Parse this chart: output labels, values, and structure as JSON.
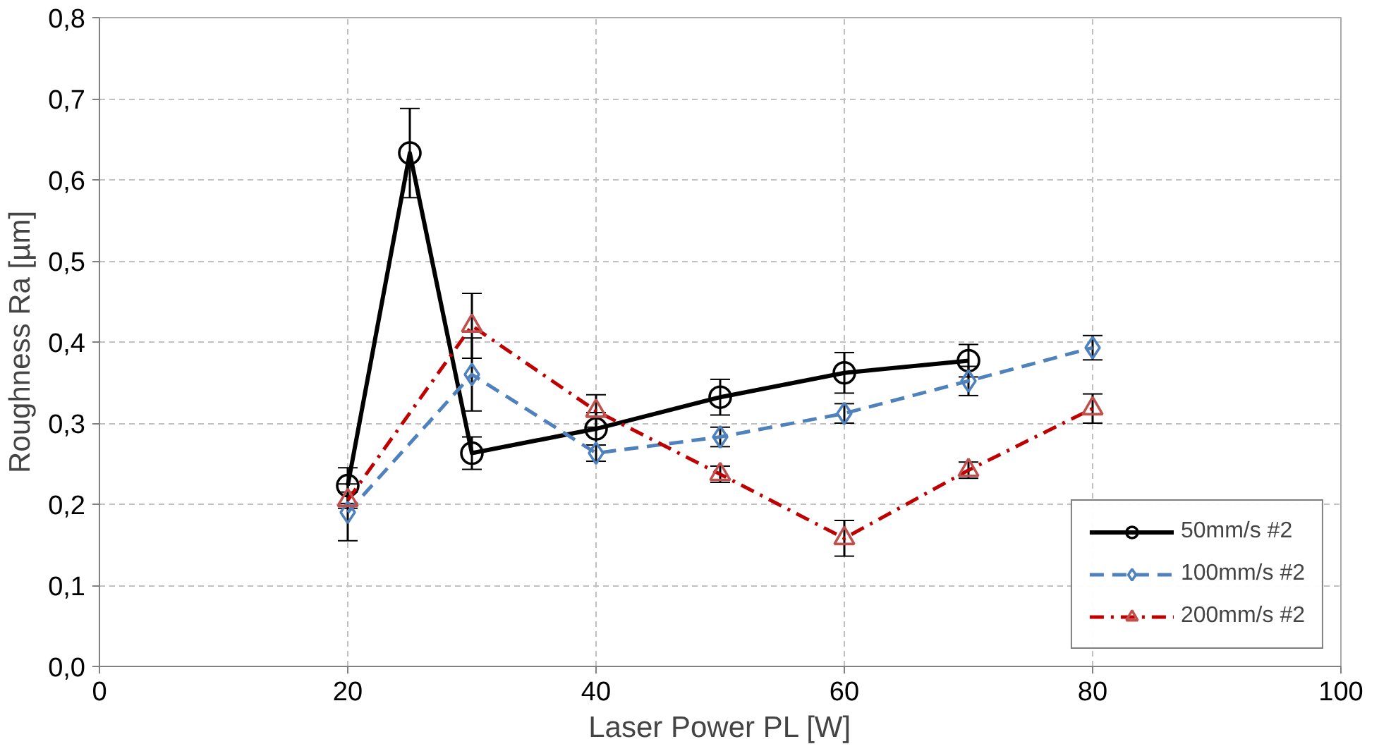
{
  "chart_data": {
    "type": "line",
    "xlabel": "Laser Power PL [W]",
    "ylabel": "Roughness Ra [µm]",
    "xlim": [
      0,
      100
    ],
    "xticks": [
      0,
      20,
      40,
      60,
      80,
      100
    ],
    "ylim": [
      0,
      0.8
    ],
    "yticks": [
      {
        "value": 0,
        "label": "0,0"
      },
      {
        "value": 0.1,
        "label": "0,1"
      },
      {
        "value": 0.2,
        "label": "0,2"
      },
      {
        "value": 0.3,
        "label": "0,3"
      },
      {
        "value": 0.4,
        "label": "0,4"
      },
      {
        "value": 0.5,
        "label": "0,5"
      },
      {
        "value": 0.6,
        "label": "0,6"
      },
      {
        "value": 0.7,
        "label": "0,7"
      },
      {
        "value": 0.8,
        "label": "0,8"
      }
    ],
    "grid": true,
    "legend": "bottom right",
    "series": [
      {
        "name": "50mm/s #2",
        "color": "#000000",
        "marker": "circle",
        "line_style": "solid",
        "x": [
          20,
          25,
          30,
          40,
          50,
          60,
          70
        ],
        "values": [
          0.223,
          0.633,
          0.263,
          0.293,
          0.332,
          0.362,
          0.377
        ],
        "errors": [
          0.022,
          0.055,
          0.02,
          0.02,
          0.022,
          0.025,
          0.02
        ]
      },
      {
        "name": "100mm/s #2",
        "color": "#4f81bd",
        "marker": "diamond",
        "line_style": "dashed",
        "x": [
          20,
          30,
          40,
          50,
          60,
          70,
          80
        ],
        "values": [
          0.19,
          0.36,
          0.263,
          0.283,
          0.312,
          0.352,
          0.393
        ],
        "errors": [
          0.035,
          0.045,
          0.01,
          0.012,
          0.012,
          0.018,
          0.015
        ]
      },
      {
        "name": "200mm/s #2",
        "color": "#c00000",
        "marker": "triangle",
        "line_style": "dashdot",
        "x": [
          20,
          30,
          40,
          50,
          60,
          70,
          80
        ],
        "values": [
          0.205,
          0.42,
          0.315,
          0.237,
          0.158,
          0.242,
          0.318
        ],
        "errors": [
          0.01,
          0.04,
          0.02,
          0.01,
          0.022,
          0.01,
          0.018
        ]
      }
    ]
  }
}
